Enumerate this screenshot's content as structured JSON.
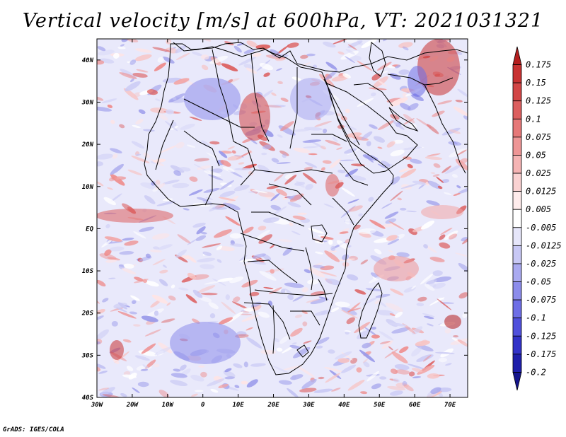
{
  "title": "Vertical velocity [m/s] at 600hPa, VT: 2021031321",
  "footer": "GrADS: IGES/COLA",
  "map": {
    "lat_labels": [
      "40N",
      "30N",
      "20N",
      "10N",
      "EQ",
      "10S",
      "20S",
      "30S",
      "40S"
    ],
    "lon_labels": [
      "30W",
      "20W",
      "10W",
      "0",
      "10E",
      "20E",
      "30E",
      "40E",
      "50E",
      "60E",
      "70E"
    ],
    "lat_range": [
      -40,
      45
    ],
    "lon_range": [
      -30,
      75
    ]
  },
  "colorbar": {
    "levels": [
      "0.175",
      "0.15",
      "0.125",
      "0.1",
      "0.075",
      "0.05",
      "0.025",
      "0.0125",
      "0.005",
      "-0.005",
      "-0.0125",
      "-0.025",
      "-0.05",
      "-0.075",
      "-0.1",
      "-0.125",
      "-0.175",
      "-0.2"
    ],
    "colors": [
      "#b41e1e",
      "#c83232",
      "#d24646",
      "#dc5f5f",
      "#e67878",
      "#ee9696",
      "#f5b4b4",
      "#fad2d2",
      "#ffecec",
      "#ffffff",
      "#e6e6fa",
      "#c8c8f5",
      "#aaaaf0",
      "#8c8ceb",
      "#6e6ee6",
      "#5050dc",
      "#3232c8",
      "#1e1eaa",
      "#14148c"
    ]
  }
}
